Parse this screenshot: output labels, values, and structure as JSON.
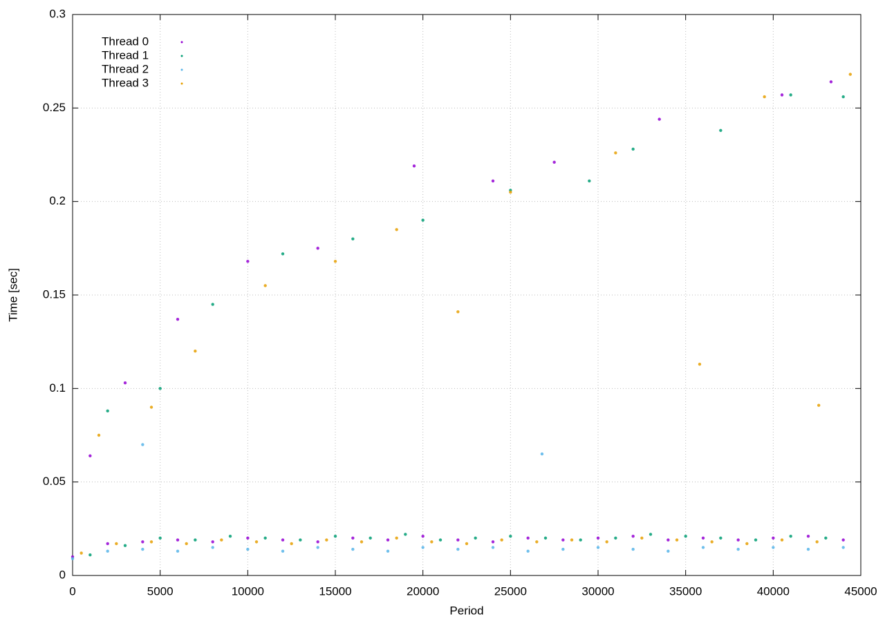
{
  "chart_data": {
    "type": "scatter",
    "x_label": "Period",
    "y_label": "Time [sec]",
    "xlim": [
      0,
      45000
    ],
    "xticks": [
      0,
      5000,
      10000,
      15000,
      20000,
      25000,
      30000,
      35000,
      40000,
      45000
    ],
    "ylim": [
      0,
      0.3
    ],
    "yticks": [
      0,
      0.05,
      0.1,
      0.15,
      0.2,
      0.25,
      0.3
    ],
    "grid": true,
    "legend": "upper left",
    "series": [
      {
        "name": "Thread 0",
        "color": "#9400d3",
        "x": [
          0,
          2000,
          4000,
          6000,
          8000,
          10000,
          12000,
          14000,
          16000,
          18000,
          20000,
          22000,
          24000,
          26000,
          28000,
          30000,
          32000,
          34000,
          36000,
          38000,
          40000,
          42000,
          44000,
          1000,
          3000,
          6000,
          10000,
          14000,
          19500,
          24000,
          27500,
          33500,
          40500,
          43300
        ],
        "values": [
          0.01,
          0.017,
          0.018,
          0.019,
          0.018,
          0.02,
          0.019,
          0.018,
          0.02,
          0.019,
          0.021,
          0.019,
          0.018,
          0.02,
          0.019,
          0.02,
          0.021,
          0.019,
          0.02,
          0.019,
          0.02,
          0.021,
          0.019,
          0.064,
          0.103,
          0.137,
          0.168,
          0.175,
          0.219,
          0.211,
          0.221,
          0.244,
          0.257,
          0.264
        ]
      },
      {
        "name": "Thread 1",
        "color": "#009e73",
        "x": [
          1000,
          3000,
          5000,
          7000,
          9000,
          11000,
          13000,
          15000,
          17000,
          19000,
          21000,
          23000,
          25000,
          27000,
          29000,
          31000,
          33000,
          35000,
          37000,
          39000,
          41000,
          43000,
          2000,
          5000,
          8000,
          12000,
          16000,
          20000,
          25000,
          29500,
          32000,
          37000,
          41000,
          44000
        ],
        "values": [
          0.011,
          0.016,
          0.02,
          0.019,
          0.021,
          0.02,
          0.019,
          0.021,
          0.02,
          0.022,
          0.019,
          0.02,
          0.021,
          0.02,
          0.019,
          0.02,
          0.022,
          0.021,
          0.02,
          0.019,
          0.021,
          0.02,
          0.088,
          0.1,
          0.145,
          0.172,
          0.18,
          0.19,
          0.206,
          0.211,
          0.228,
          0.238,
          0.257,
          0.256
        ]
      },
      {
        "name": "Thread 2",
        "color": "#56b4e9",
        "x": [
          0,
          2000,
          4000,
          6000,
          8000,
          10000,
          12000,
          14000,
          16000,
          18000,
          20000,
          22000,
          24000,
          26000,
          28000,
          30000,
          32000,
          34000,
          36000,
          38000,
          40000,
          42000,
          44000,
          4000,
          26800
        ],
        "values": [
          0.009,
          0.013,
          0.014,
          0.013,
          0.015,
          0.014,
          0.013,
          0.015,
          0.014,
          0.013,
          0.015,
          0.014,
          0.015,
          0.013,
          0.014,
          0.015,
          0.014,
          0.013,
          0.015,
          0.014,
          0.015,
          0.014,
          0.015,
          0.07,
          0.065
        ]
      },
      {
        "name": "Thread 3",
        "color": "#e69f00",
        "x": [
          500,
          2500,
          4500,
          6500,
          8500,
          10500,
          12500,
          14500,
          16500,
          18500,
          20500,
          22500,
          24500,
          26500,
          28500,
          30500,
          32500,
          34500,
          36500,
          38500,
          40500,
          42500,
          1500,
          4500,
          7000,
          11000,
          15000,
          18500,
          22000,
          25000,
          31000,
          35800,
          39500,
          42600,
          44400
        ],
        "values": [
          0.012,
          0.017,
          0.018,
          0.017,
          0.019,
          0.018,
          0.017,
          0.019,
          0.018,
          0.02,
          0.018,
          0.017,
          0.019,
          0.018,
          0.019,
          0.018,
          0.02,
          0.019,
          0.018,
          0.017,
          0.019,
          0.018,
          0.075,
          0.09,
          0.12,
          0.155,
          0.168,
          0.185,
          0.141,
          0.205,
          0.226,
          0.113,
          0.256,
          0.091,
          0.268
        ]
      }
    ]
  }
}
